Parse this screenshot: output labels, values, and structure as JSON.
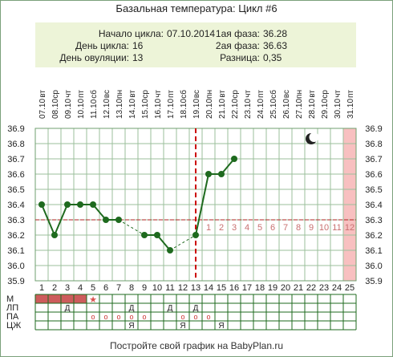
{
  "title": "Базальная температура: Цикл #6",
  "info": {
    "start_label": "Начало цикла:",
    "start_value": "07.10.2014",
    "day_label": "День цикла:",
    "day_value": "16",
    "ovulation_label": "День овуляции:",
    "ovulation_value": "13",
    "phase1_label": "1ая фаза:",
    "phase1_value": "36.28",
    "phase2_label": "2ая фаза:",
    "phase2_value": "36.63",
    "diff_label": "Разница:",
    "diff_value": "0,35"
  },
  "footer": "Постройте свой график на BabyPlan.ru",
  "colors": {
    "line": "#1e6a1e",
    "grid": "#9bbf9b",
    "coverline": "#b22222",
    "ovulation": "#cc0000",
    "period": "#cd5c5c",
    "highlight": "#f8c0c0",
    "post_ovulation_numbers": "#c87070"
  },
  "moon_icon": "crescent-moon-icon",
  "chart_data": {
    "type": "line",
    "title": "Базальная температура: Цикл #6",
    "dates": [
      "07.10",
      "08.10",
      "09.10",
      "10.10",
      "11.10",
      "12.10",
      "13.10",
      "14.10",
      "15.10",
      "16.10",
      "17.10",
      "18.10",
      "19.10",
      "20.10",
      "21.10",
      "22.10",
      "23.10",
      "24.10",
      "25.10",
      "26.10",
      "27.10",
      "28.10",
      "29.10",
      "30.10",
      "31.10"
    ],
    "weekdays": [
      "вт",
      "ср",
      "чт",
      "пт",
      "сб",
      "вс",
      "пн",
      "вт",
      "ср",
      "чт",
      "пт",
      "сб",
      "вс",
      "пн",
      "вт",
      "ср",
      "чт",
      "пт",
      "сб",
      "вс",
      "пн",
      "вт",
      "ср",
      "чт",
      "пт"
    ],
    "days": [
      1,
      2,
      3,
      4,
      5,
      6,
      7,
      8,
      9,
      10,
      11,
      12,
      13,
      14,
      15,
      16,
      17,
      18,
      19,
      20,
      21,
      22,
      23,
      24,
      25
    ],
    "temperatures": [
      36.4,
      36.2,
      36.4,
      36.4,
      36.4,
      36.3,
      36.3,
      null,
      36.2,
      36.2,
      36.1,
      null,
      36.2,
      36.6,
      36.6,
      36.7,
      null,
      null,
      null,
      null,
      null,
      null,
      null,
      null,
      null
    ],
    "ylim": [
      35.9,
      36.9
    ],
    "yticks": [
      "35.9",
      "36.0",
      "36.1",
      "36.2",
      "36.3",
      "36.4",
      "36.5",
      "36.6",
      "36.7",
      "36.8",
      "36.9"
    ],
    "coverline": 36.3,
    "ovulation_day": 13,
    "highlight_day": 25,
    "post_ovulation_labels": [
      "1",
      "2",
      "3",
      "4",
      "5",
      "6",
      "7",
      "8",
      "9",
      "10",
      "11",
      "12"
    ],
    "grid": true
  },
  "rows": [
    {
      "label": "М",
      "marks": {
        "1": "period",
        "2": "period",
        "3": "period",
        "4": "period",
        "5": "star"
      }
    },
    {
      "label": "ЛП",
      "marks": {
        "3": "Д",
        "8": "Д",
        "11": "Д",
        "13": "Д"
      }
    },
    {
      "label": "ПА",
      "marks": {
        "5": "о",
        "6": "о",
        "7": "о",
        "8": "о",
        "9": "о",
        "12": "о",
        "13": "о",
        "14": "о"
      }
    },
    {
      "label": "ЦЖ",
      "marks": {
        "8": "Я",
        "12": "Я",
        "15": "Я"
      }
    }
  ]
}
